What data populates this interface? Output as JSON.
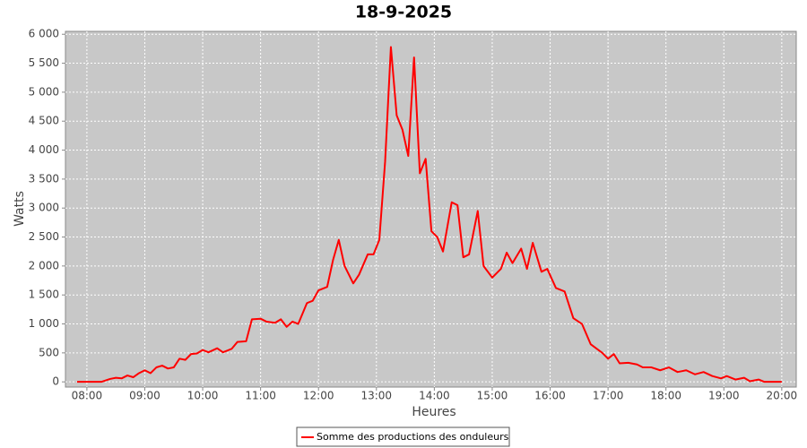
{
  "chart_data": {
    "type": "line",
    "title": "18-9-2025",
    "xlabel": "Heures",
    "ylabel": "Watts",
    "x": [
      7.83,
      8.0,
      8.25,
      8.4,
      8.5,
      8.6,
      8.7,
      8.8,
      8.9,
      9.0,
      9.1,
      9.2,
      9.3,
      9.4,
      9.5,
      9.6,
      9.7,
      9.8,
      9.9,
      10.0,
      10.1,
      10.25,
      10.35,
      10.5,
      10.6,
      10.75,
      10.85,
      11.0,
      11.1,
      11.25,
      11.35,
      11.45,
      11.55,
      11.65,
      11.8,
      11.9,
      12.0,
      12.15,
      12.25,
      12.35,
      12.45,
      12.6,
      12.7,
      12.85,
      12.95,
      13.05,
      13.15,
      13.25,
      13.35,
      13.45,
      13.55,
      13.65,
      13.75,
      13.85,
      13.95,
      14.05,
      14.15,
      14.3,
      14.4,
      14.5,
      14.6,
      14.75,
      14.85,
      15.0,
      15.15,
      15.25,
      15.35,
      15.5,
      15.6,
      15.7,
      15.85,
      15.95,
      16.1,
      16.25,
      16.4,
      16.55,
      16.7,
      16.9,
      17.0,
      17.1,
      17.2,
      17.35,
      17.5,
      17.6,
      17.75,
      17.9,
      18.05,
      18.2,
      18.35,
      18.5,
      18.65,
      18.8,
      18.95,
      19.05,
      19.2,
      19.35,
      19.45,
      19.6,
      19.7,
      19.85,
      20.0
    ],
    "series": [
      {
        "name": "Somme des productions des onduleurs",
        "color": "#ff0000",
        "values": [
          0,
          0,
          0,
          50,
          70,
          60,
          110,
          80,
          150,
          200,
          150,
          250,
          280,
          230,
          250,
          400,
          380,
          480,
          490,
          550,
          510,
          580,
          510,
          570,
          690,
          700,
          1080,
          1090,
          1040,
          1020,
          1080,
          950,
          1040,
          1000,
          1360,
          1400,
          1580,
          1640,
          2100,
          2450,
          2000,
          1700,
          1850,
          2200,
          2200,
          2450,
          3800,
          5780,
          4600,
          4350,
          3900,
          5600,
          3600,
          3850,
          2600,
          2500,
          2250,
          3100,
          3050,
          2150,
          2200,
          2950,
          2000,
          1800,
          1950,
          2230,
          2050,
          2300,
          1950,
          2400,
          1900,
          1950,
          1620,
          1560,
          1100,
          1000,
          650,
          500,
          400,
          480,
          320,
          330,
          300,
          250,
          250,
          200,
          250,
          170,
          200,
          130,
          170,
          100,
          60,
          100,
          40,
          70,
          10,
          40,
          0,
          0,
          0
        ]
      }
    ],
    "xlim": [
      7.63,
      20.25
    ],
    "ylim": [
      -90,
      6050
    ],
    "xticks": [
      {
        "value": 8,
        "label": "08:00"
      },
      {
        "value": 9,
        "label": "09:00"
      },
      {
        "value": 10,
        "label": "10:00"
      },
      {
        "value": 11,
        "label": "11:00"
      },
      {
        "value": 12,
        "label": "12:00"
      },
      {
        "value": 13,
        "label": "13:00"
      },
      {
        "value": 14,
        "label": "14:00"
      },
      {
        "value": 15,
        "label": "15:00"
      },
      {
        "value": 16,
        "label": "16:00"
      },
      {
        "value": 17,
        "label": "17:00"
      },
      {
        "value": 18,
        "label": "18:00"
      },
      {
        "value": 19,
        "label": "19:00"
      },
      {
        "value": 20,
        "label": "20:00"
      }
    ],
    "yticks": [
      0,
      500,
      {
        "value": 1000,
        "label": "1 000"
      },
      {
        "value": 1500,
        "label": "1 500"
      },
      {
        "value": 2000,
        "label": "2 000"
      },
      {
        "value": 2500,
        "label": "2 500"
      },
      {
        "value": 3000,
        "label": "3 000"
      },
      {
        "value": 3500,
        "label": "3 500"
      },
      {
        "value": 4000,
        "label": "4 000"
      },
      {
        "value": 4500,
        "label": "4 500"
      },
      {
        "value": 5000,
        "label": "5 000"
      },
      {
        "value": 5500,
        "label": "5 500"
      },
      {
        "value": 6000,
        "label": "6 000"
      }
    ],
    "grid": true,
    "legend": "bottom"
  }
}
